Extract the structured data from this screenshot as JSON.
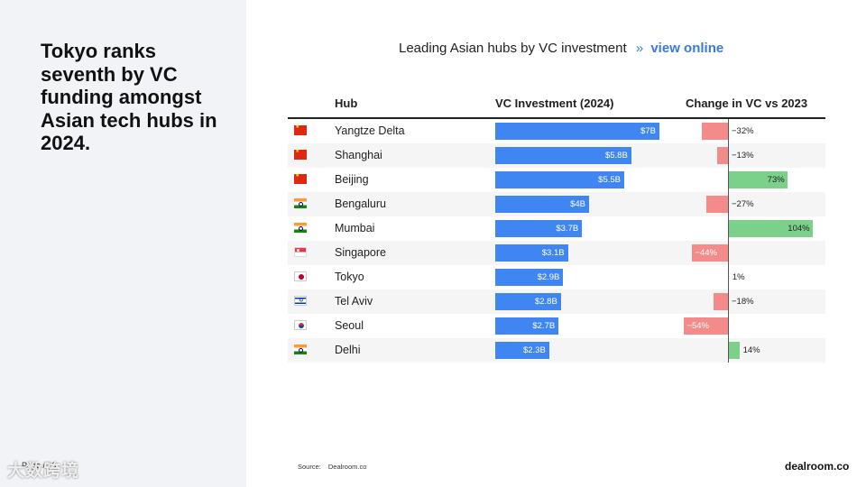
{
  "headline": "Tokyo ranks seventh by VC funding amongst Asian tech hubs in 2024.",
  "page_number": "Page / 10",
  "watermark": "大数跨境",
  "brand": "dealroom.co",
  "source": {
    "label": "Source:",
    "value": "Dealroom.co"
  },
  "colors": {
    "vc_bar": "#3f86f2",
    "negative": "#f38b8b",
    "positive": "#7bd08a",
    "link": "#3a7bd5"
  },
  "chart_data": {
    "type": "table",
    "title": "Leading Asian hubs by VC investment",
    "title_link_separator": "»",
    "title_link": "view online",
    "columns": [
      "Hub",
      "VC Investment (2024)",
      "Change in VC vs 2023"
    ],
    "rows": [
      {
        "flag": "china-flag-icon",
        "hub": "Yangtze Delta",
        "vc_value": 7.0,
        "vc_label": "$7B",
        "change": -32,
        "change_label": "−32%"
      },
      {
        "flag": "china-flag-icon",
        "hub": "Shanghai",
        "vc_value": 5.8,
        "vc_label": "$5.8B",
        "change": -13,
        "change_label": "−13%"
      },
      {
        "flag": "china-flag-icon",
        "hub": "Beijing",
        "vc_value": 5.5,
        "vc_label": "$5.5B",
        "change": 73,
        "change_label": "73%"
      },
      {
        "flag": "india-flag-icon",
        "hub": "Bengaluru",
        "vc_value": 4.0,
        "vc_label": "$4B",
        "change": -27,
        "change_label": "−27%"
      },
      {
        "flag": "india-flag-icon",
        "hub": "Mumbai",
        "vc_value": 3.7,
        "vc_label": "$3.7B",
        "change": 104,
        "change_label": "104%"
      },
      {
        "flag": "singapore-flag-icon",
        "hub": "Singapore",
        "vc_value": 3.1,
        "vc_label": "$3.1B",
        "change": -44,
        "change_label": "−44%"
      },
      {
        "flag": "japan-flag-icon",
        "hub": "Tokyo",
        "vc_value": 2.9,
        "vc_label": "$2.9B",
        "change": 1,
        "change_label": "1%"
      },
      {
        "flag": "israel-flag-icon",
        "hub": "Tel Aviv",
        "vc_value": 2.8,
        "vc_label": "$2.8B",
        "change": -18,
        "change_label": "−18%"
      },
      {
        "flag": "south-korea-flag-icon",
        "hub": "Seoul",
        "vc_value": 2.7,
        "vc_label": "$2.7B",
        "change": -54,
        "change_label": "−54%"
      },
      {
        "flag": "india-flag-icon",
        "hub": "Delhi",
        "vc_value": 2.3,
        "vc_label": "$2.3B",
        "change": 14,
        "change_label": "14%"
      }
    ]
  }
}
